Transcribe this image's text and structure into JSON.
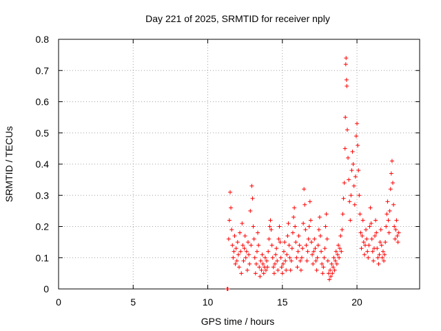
{
  "chart_data": {
    "type": "scatter",
    "title": "Day 221 of 2025, SRMTID for receiver nply",
    "xlabel": "GPS time / hours",
    "ylabel": "SRMTID / TECUs",
    "xlim": [
      0,
      24.2
    ],
    "ylim": [
      0,
      0.8
    ],
    "xticks": [
      0,
      5,
      10,
      15,
      20
    ],
    "yticks": [
      0,
      0.1,
      0.2,
      0.3,
      0.4,
      0.5,
      0.6,
      0.7,
      0.8
    ],
    "xtick_labels": [
      "0",
      "5",
      "10",
      "15",
      "20"
    ],
    "ytick_labels": [
      "0",
      "0.1",
      "0.2",
      "0.3",
      "0.4",
      "0.5",
      "0.6",
      "0.7",
      "0.8"
    ],
    "grid": true,
    "marker": "+",
    "color": "#ff0000",
    "series": [
      {
        "name": "SRMTID",
        "points": [
          [
            11.3,
            0.0
          ],
          [
            11.35,
            0.0
          ],
          [
            11.4,
            0.16
          ],
          [
            11.45,
            0.22
          ],
          [
            11.5,
            0.31
          ],
          [
            11.55,
            0.26
          ],
          [
            11.6,
            0.19
          ],
          [
            11.65,
            0.14
          ],
          [
            11.7,
            0.1
          ],
          [
            11.75,
            0.12
          ],
          [
            11.8,
            0.17
          ],
          [
            11.85,
            0.08
          ],
          [
            11.9,
            0.13
          ],
          [
            11.95,
            0.09
          ],
          [
            12.0,
            0.15
          ],
          [
            12.05,
            0.11
          ],
          [
            12.1,
            0.07
          ],
          [
            12.15,
            0.18
          ],
          [
            12.2,
            0.12
          ],
          [
            12.25,
            0.05
          ],
          [
            12.3,
            0.21
          ],
          [
            12.35,
            0.14
          ],
          [
            12.4,
            0.09
          ],
          [
            12.45,
            0.13
          ],
          [
            12.5,
            0.17
          ],
          [
            12.55,
            0.1
          ],
          [
            12.6,
            0.12
          ],
          [
            12.65,
            0.06
          ],
          [
            12.7,
            0.15
          ],
          [
            12.75,
            0.11
          ],
          [
            12.8,
            0.08
          ],
          [
            12.85,
            0.25
          ],
          [
            12.9,
            0.14
          ],
          [
            12.95,
            0.33
          ],
          [
            13.0,
            0.29
          ],
          [
            13.05,
            0.2
          ],
          [
            13.1,
            0.16
          ],
          [
            13.15,
            0.1
          ],
          [
            13.2,
            0.05
          ],
          [
            13.25,
            0.08
          ],
          [
            13.3,
            0.12
          ],
          [
            13.35,
            0.18
          ],
          [
            13.4,
            0.14
          ],
          [
            13.45,
            0.07
          ],
          [
            13.5,
            0.04
          ],
          [
            13.55,
            0.09
          ],
          [
            13.6,
            0.06
          ],
          [
            13.65,
            0.11
          ],
          [
            13.7,
            0.08
          ],
          [
            13.75,
            0.05
          ],
          [
            13.8,
            0.07
          ],
          [
            13.85,
            0.1
          ],
          [
            13.9,
            0.06
          ],
          [
            13.95,
            0.09
          ],
          [
            14.0,
            0.07
          ],
          [
            14.05,
            0.12
          ],
          [
            14.1,
            0.16
          ],
          [
            14.15,
            0.2
          ],
          [
            14.2,
            0.22
          ],
          [
            14.25,
            0.19
          ],
          [
            14.3,
            0.14
          ],
          [
            14.35,
            0.1
          ],
          [
            14.4,
            0.07
          ],
          [
            14.45,
            0.05
          ],
          [
            14.5,
            0.08
          ],
          [
            14.55,
            0.11
          ],
          [
            14.6,
            0.13
          ],
          [
            14.65,
            0.09
          ],
          [
            14.7,
            0.06
          ],
          [
            14.75,
            0.16
          ],
          [
            14.8,
            0.2
          ],
          [
            14.85,
            0.15
          ],
          [
            14.9,
            0.1
          ],
          [
            14.95,
            0.07
          ],
          [
            15.0,
            0.05
          ],
          [
            15.05,
            0.08
          ],
          [
            15.1,
            0.12
          ],
          [
            15.15,
            0.15
          ],
          [
            15.2,
            0.09
          ],
          [
            15.25,
            0.06
          ],
          [
            15.3,
            0.11
          ],
          [
            15.35,
            0.17
          ],
          [
            15.4,
            0.21
          ],
          [
            15.45,
            0.14
          ],
          [
            15.5,
            0.1
          ],
          [
            15.55,
            0.06
          ],
          [
            15.6,
            0.09
          ],
          [
            15.65,
            0.13
          ],
          [
            15.7,
            0.18
          ],
          [
            15.75,
            0.23
          ],
          [
            15.8,
            0.26
          ],
          [
            15.85,
            0.2
          ],
          [
            15.9,
            0.15
          ],
          [
            15.95,
            0.1
          ],
          [
            16.0,
            0.07
          ],
          [
            16.05,
            0.12
          ],
          [
            16.1,
            0.17
          ],
          [
            16.15,
            0.14
          ],
          [
            16.2,
            0.09
          ],
          [
            16.25,
            0.06
          ],
          [
            16.3,
            0.1
          ],
          [
            16.35,
            0.13
          ],
          [
            16.4,
            0.21
          ],
          [
            16.45,
            0.32
          ],
          [
            16.5,
            0.27
          ],
          [
            16.55,
            0.19
          ],
          [
            16.6,
            0.14
          ],
          [
            16.65,
            0.09
          ],
          [
            16.7,
            0.12
          ],
          [
            16.75,
            0.16
          ],
          [
            16.8,
            0.2
          ],
          [
            16.85,
            0.28
          ],
          [
            16.9,
            0.22
          ],
          [
            16.95,
            0.15
          ],
          [
            17.0,
            0.11
          ],
          [
            17.05,
            0.08
          ],
          [
            17.1,
            0.12
          ],
          [
            17.15,
            0.16
          ],
          [
            17.2,
            0.13
          ],
          [
            17.25,
            0.09
          ],
          [
            17.3,
            0.06
          ],
          [
            17.35,
            0.1
          ],
          [
            17.4,
            0.14
          ],
          [
            17.45,
            0.19
          ],
          [
            17.5,
            0.23
          ],
          [
            17.55,
            0.17
          ],
          [
            17.6,
            0.12
          ],
          [
            17.65,
            0.08
          ],
          [
            17.7,
            0.05
          ],
          [
            17.75,
            0.07
          ],
          [
            17.8,
            0.1
          ],
          [
            17.85,
            0.13
          ],
          [
            17.9,
            0.2
          ],
          [
            17.95,
            0.24
          ],
          [
            18.0,
            0.16
          ],
          [
            18.05,
            0.09
          ],
          [
            18.1,
            0.05
          ],
          [
            18.15,
            0.03
          ],
          [
            18.2,
            0.06
          ],
          [
            18.25,
            0.04
          ],
          [
            18.3,
            0.08
          ],
          [
            18.35,
            0.05
          ],
          [
            18.4,
            0.07
          ],
          [
            18.45,
            0.1
          ],
          [
            18.5,
            0.06
          ],
          [
            18.55,
            0.09
          ],
          [
            18.6,
            0.12
          ],
          [
            18.65,
            0.08
          ],
          [
            18.7,
            0.11
          ],
          [
            18.75,
            0.14
          ],
          [
            18.8,
            0.1
          ],
          [
            18.85,
            0.13
          ],
          [
            18.9,
            0.17
          ],
          [
            18.95,
            0.12
          ],
          [
            19.0,
            0.19
          ],
          [
            19.05,
            0.24
          ],
          [
            19.1,
            0.29
          ],
          [
            19.15,
            0.34
          ],
          [
            19.2,
            0.45
          ],
          [
            19.22,
            0.55
          ],
          [
            19.25,
            0.72
          ],
          [
            19.27,
            0.74
          ],
          [
            19.3,
            0.67
          ],
          [
            19.32,
            0.65
          ],
          [
            19.35,
            0.51
          ],
          [
            19.4,
            0.42
          ],
          [
            19.45,
            0.35
          ],
          [
            19.5,
            0.28
          ],
          [
            19.55,
            0.22
          ],
          [
            19.6,
            0.3
          ],
          [
            19.65,
            0.38
          ],
          [
            19.7,
            0.44
          ],
          [
            19.75,
            0.4
          ],
          [
            19.8,
            0.33
          ],
          [
            19.85,
            0.27
          ],
          [
            19.9,
            0.36
          ],
          [
            19.95,
            0.49
          ],
          [
            20.0,
            0.53
          ],
          [
            20.05,
            0.46
          ],
          [
            20.1,
            0.38
          ],
          [
            20.15,
            0.3
          ],
          [
            20.2,
            0.24
          ],
          [
            20.25,
            0.18
          ],
          [
            20.3,
            0.13
          ],
          [
            20.35,
            0.17
          ],
          [
            20.4,
            0.22
          ],
          [
            20.45,
            0.15
          ],
          [
            20.5,
            0.11
          ],
          [
            20.55,
            0.14
          ],
          [
            20.6,
            0.19
          ],
          [
            20.65,
            0.16
          ],
          [
            20.7,
            0.12
          ],
          [
            20.75,
            0.1
          ],
          [
            20.8,
            0.14
          ],
          [
            20.85,
            0.2
          ],
          [
            20.9,
            0.26
          ],
          [
            20.95,
            0.21
          ],
          [
            21.0,
            0.16
          ],
          [
            21.05,
            0.12
          ],
          [
            21.1,
            0.09
          ],
          [
            21.15,
            0.13
          ],
          [
            21.2,
            0.17
          ],
          [
            21.25,
            0.22
          ],
          [
            21.3,
            0.18
          ],
          [
            21.35,
            0.13
          ],
          [
            21.4,
            0.1
          ],
          [
            21.45,
            0.08
          ],
          [
            21.5,
            0.11
          ],
          [
            21.55,
            0.15
          ],
          [
            21.6,
            0.19
          ],
          [
            21.65,
            0.14
          ],
          [
            21.7,
            0.1
          ],
          [
            21.75,
            0.12
          ],
          [
            21.8,
            0.09
          ],
          [
            21.85,
            0.11
          ],
          [
            21.9,
            0.15
          ],
          [
            21.95,
            0.2
          ],
          [
            22.0,
            0.24
          ],
          [
            22.05,
            0.28
          ],
          [
            22.1,
            0.22
          ],
          [
            22.15,
            0.18
          ],
          [
            22.2,
            0.25
          ],
          [
            22.25,
            0.32
          ],
          [
            22.3,
            0.37
          ],
          [
            22.35,
            0.41
          ],
          [
            22.4,
            0.34
          ],
          [
            22.45,
            0.27
          ],
          [
            22.5,
            0.2
          ],
          [
            22.55,
            0.16
          ],
          [
            22.6,
            0.19
          ],
          [
            22.65,
            0.22
          ],
          [
            22.7,
            0.17
          ],
          [
            22.75,
            0.15
          ],
          [
            22.8,
            0.18
          ]
        ]
      }
    ]
  }
}
